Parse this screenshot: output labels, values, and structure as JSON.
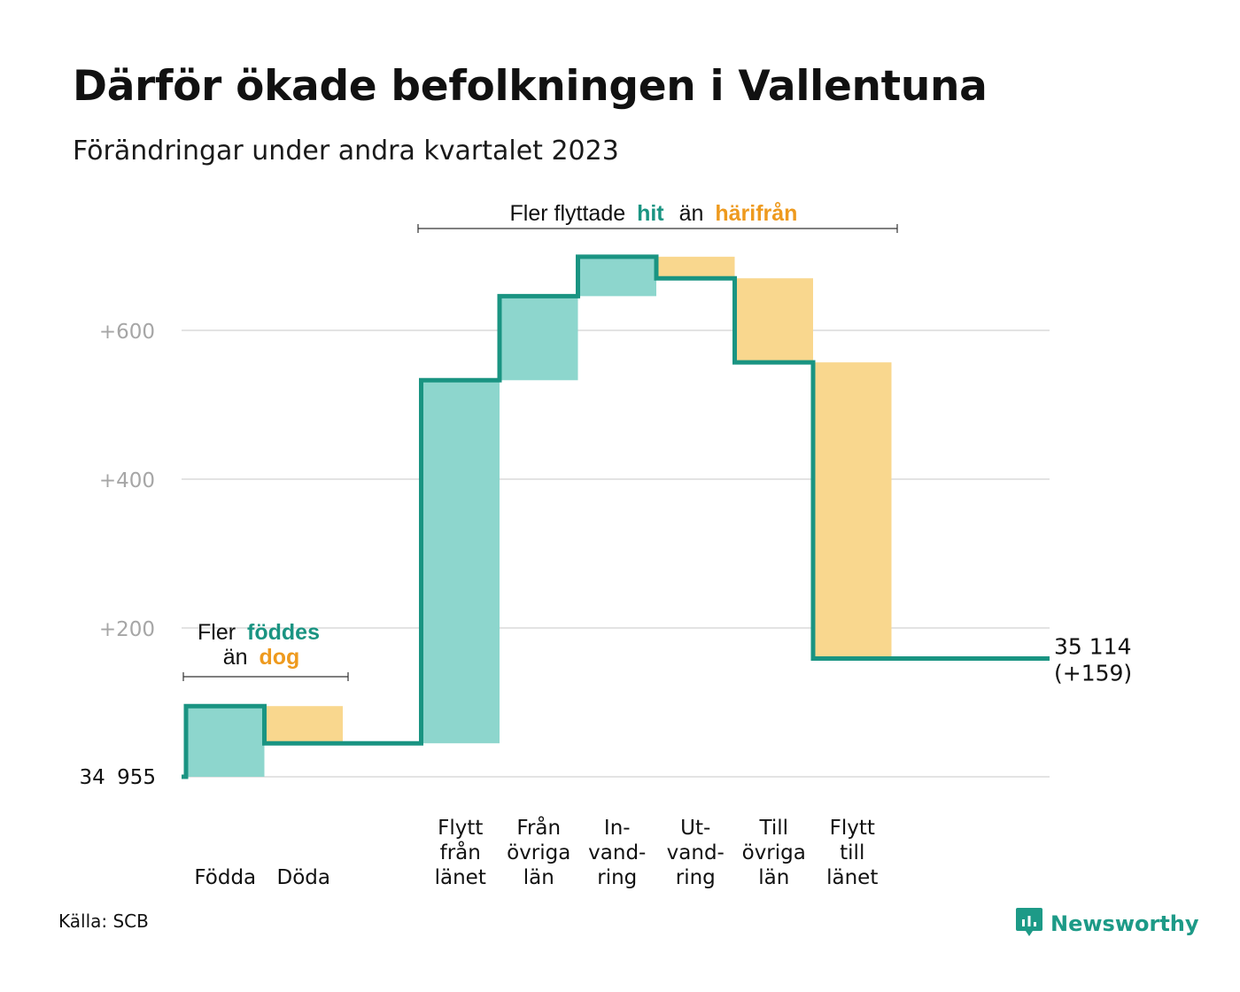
{
  "title": "Därför ökade befolkningen i Vallentuna",
  "subtitle": "Förändringar under andra kvartalet 2023",
  "source": "Källa: SCB",
  "brand": {
    "name": "Newsworthy",
    "icon": "newsworthy-logo-icon"
  },
  "colors": {
    "increase": "#8dd6cd",
    "decrease": "#f9d78e",
    "line": "#1a9482",
    "teal_text": "#1a9482",
    "orange_text": "#ee9a1e",
    "grid": "#e3e3e3",
    "tick": "#a6a6a6"
  },
  "annotations": {
    "births": {
      "prefix": "Fler",
      "highlight1": "föddes",
      "middle": "än",
      "highlight2": "dog"
    },
    "moves": {
      "prefix": "Fler flyttade",
      "highlight1": "hit",
      "middle": "än",
      "highlight2": "härifrån"
    }
  },
  "chart_data": {
    "type": "waterfall",
    "start_value": 34955,
    "start_label": "34 955",
    "end_value": 35114,
    "end_label": "35 114",
    "end_change_label": "(+159)",
    "ylim": [
      0,
      700
    ],
    "yticks": [
      {
        "value": 200,
        "label": "+200"
      },
      {
        "value": 400,
        "label": "+400"
      },
      {
        "value": 600,
        "label": "+600"
      }
    ],
    "steps": [
      {
        "label": [
          "Födda"
        ],
        "change": 95
      },
      {
        "label": [
          "Döda"
        ],
        "change": -50
      },
      {
        "label": [
          "Flytt",
          "från",
          "länet"
        ],
        "change": 488
      },
      {
        "label": [
          "Från",
          "övriga",
          "län"
        ],
        "change": 113
      },
      {
        "label": [
          "In-",
          "vand-",
          "ring"
        ],
        "change": 53
      },
      {
        "label": [
          "Ut-",
          "vand-",
          "ring"
        ],
        "change": -29
      },
      {
        "label": [
          "Till",
          "övriga",
          "län"
        ],
        "change": -113
      },
      {
        "label": [
          "Flytt",
          "till",
          "länet"
        ],
        "change": -398
      }
    ]
  }
}
